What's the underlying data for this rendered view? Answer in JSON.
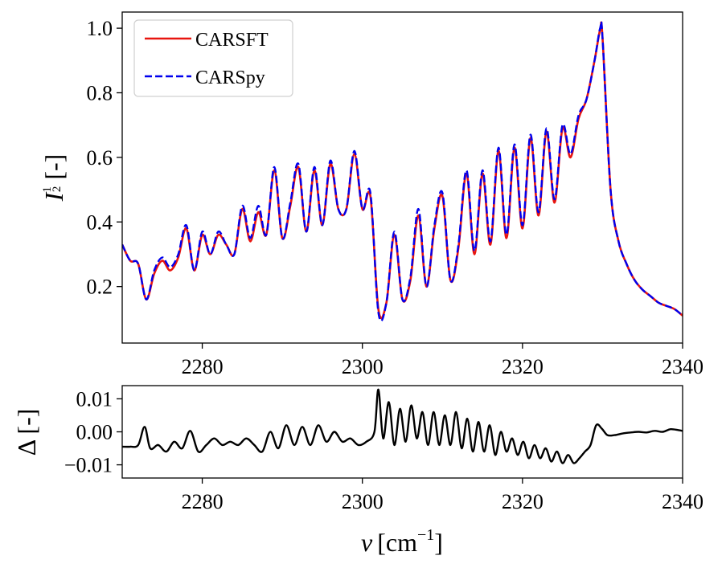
{
  "chart_data": [
    {
      "type": "line",
      "panel": "top",
      "xlabel": "",
      "ylabel_main": "I",
      "ylabel_exp_num": "1",
      "ylabel_exp_den": "2",
      "ylabel_unit": "[-]",
      "xlim": [
        2270,
        2340
      ],
      "ylim": [
        0.025,
        1.05
      ],
      "xticks": [
        2280,
        2300,
        2320,
        2340
      ],
      "yticks": [
        0.2,
        0.4,
        0.6,
        0.8,
        1.0
      ],
      "xtick_labels": [
        "2280",
        "2300",
        "2320",
        "2340"
      ],
      "ytick_labels": [
        "0.2",
        "0.4",
        "0.6",
        "0.8",
        "1.0"
      ],
      "legend": {
        "position": "top-left",
        "entries": [
          "CARSFT",
          "CARSpy"
        ]
      },
      "series": [
        {
          "name": "CARSFT",
          "color": "#e8150f",
          "style": "solid"
        },
        {
          "name": "CARSpy",
          "color": "#0000ee",
          "style": "dashed"
        }
      ],
      "x": [
        2270,
        2271,
        2272,
        2273,
        2274,
        2275,
        2276,
        2277,
        2278,
        2279,
        2280,
        2281,
        2282,
        2283,
        2284,
        2285,
        2286,
        2287,
        2288,
        2289,
        2290,
        2291,
        2292,
        2293,
        2294,
        2295,
        2296,
        2297,
        2298,
        2299,
        2300,
        2301,
        2302,
        2303,
        2304,
        2305,
        2306,
        2307,
        2308,
        2309,
        2310,
        2311,
        2312,
        2313,
        2314,
        2315,
        2316,
        2317,
        2318,
        2319,
        2320,
        2321,
        2322,
        2323,
        2324,
        2325,
        2326,
        2327,
        2328,
        2329,
        2329.7,
        2330,
        2331,
        2332,
        2333,
        2334,
        2335,
        2336,
        2337,
        2338,
        2339,
        2340
      ],
      "y_carsft": [
        0.33,
        0.28,
        0.27,
        0.16,
        0.24,
        0.28,
        0.25,
        0.29,
        0.38,
        0.25,
        0.36,
        0.3,
        0.36,
        0.33,
        0.3,
        0.44,
        0.34,
        0.43,
        0.36,
        0.56,
        0.35,
        0.45,
        0.57,
        0.37,
        0.56,
        0.39,
        0.58,
        0.44,
        0.44,
        0.61,
        0.44,
        0.48,
        0.13,
        0.15,
        0.36,
        0.16,
        0.22,
        0.42,
        0.2,
        0.38,
        0.48,
        0.22,
        0.32,
        0.55,
        0.3,
        0.55,
        0.33,
        0.62,
        0.35,
        0.63,
        0.38,
        0.66,
        0.42,
        0.68,
        0.46,
        0.69,
        0.6,
        0.72,
        0.78,
        0.9,
        0.995,
        0.97,
        0.5,
        0.34,
        0.27,
        0.22,
        0.19,
        0.17,
        0.15,
        0.14,
        0.13,
        0.11
      ],
      "y_carspy": [
        0.33,
        0.28,
        0.27,
        0.16,
        0.25,
        0.29,
        0.26,
        0.3,
        0.39,
        0.25,
        0.37,
        0.3,
        0.37,
        0.33,
        0.3,
        0.45,
        0.35,
        0.45,
        0.36,
        0.57,
        0.35,
        0.46,
        0.58,
        0.37,
        0.57,
        0.39,
        0.59,
        0.44,
        0.44,
        0.62,
        0.44,
        0.49,
        0.12,
        0.15,
        0.37,
        0.16,
        0.23,
        0.44,
        0.2,
        0.39,
        0.49,
        0.22,
        0.33,
        0.56,
        0.31,
        0.56,
        0.34,
        0.63,
        0.36,
        0.64,
        0.39,
        0.67,
        0.43,
        0.69,
        0.47,
        0.7,
        0.61,
        0.73,
        0.78,
        0.9,
        1.0,
        0.97,
        0.5,
        0.34,
        0.27,
        0.22,
        0.19,
        0.17,
        0.15,
        0.14,
        0.13,
        0.11
      ]
    },
    {
      "type": "line",
      "panel": "bottom",
      "xlabel_main": "ν",
      "xlabel_unit_base": "cm",
      "xlabel_unit_exp": "−1",
      "ylabel": "Δ [-]",
      "xlim": [
        2270,
        2340
      ],
      "ylim": [
        -0.014,
        0.014
      ],
      "xticks": [
        2280,
        2300,
        2320,
        2340
      ],
      "yticks": [
        -0.01,
        0.0,
        0.01
      ],
      "xtick_labels": [
        "2280",
        "2300",
        "2320",
        "2340"
      ],
      "ytick_labels": [
        "−0.01",
        "0.00",
        "0.01"
      ],
      "series": [
        {
          "name": "difference",
          "color": "#000000",
          "style": "solid"
        }
      ],
      "x": [
        2270,
        2271,
        2272,
        2272.8,
        2273.5,
        2274.5,
        2275.5,
        2276.5,
        2277.5,
        2278.5,
        2279.5,
        2280.5,
        2281.5,
        2282.5,
        2283.5,
        2284.5,
        2285.5,
        2286.5,
        2287.5,
        2288.5,
        2289.5,
        2290.5,
        2291.5,
        2292.5,
        2293.5,
        2294.5,
        2295.5,
        2296.5,
        2297.5,
        2298.5,
        2299.5,
        2300.5,
        2301.5,
        2302,
        2302.6,
        2303.3,
        2304,
        2304.7,
        2305.4,
        2306.1,
        2306.8,
        2307.5,
        2308.2,
        2308.9,
        2309.6,
        2310.3,
        2311,
        2311.7,
        2312.4,
        2313.1,
        2313.8,
        2314.5,
        2315.2,
        2315.9,
        2316.6,
        2317.3,
        2318,
        2318.7,
        2319.4,
        2320.1,
        2320.8,
        2321.5,
        2322.2,
        2322.9,
        2323.6,
        2324.3,
        2325,
        2325.7,
        2326.4,
        2327.1,
        2327.8,
        2328.5,
        2329.2,
        2329.9,
        2330.6,
        2331.5,
        2332.5,
        2333.5,
        2334.5,
        2335.5,
        2336.5,
        2337.5,
        2338.5,
        2339.5,
        2340
      ],
      "y": [
        -0.0045,
        -0.0045,
        -0.004,
        0.0015,
        -0.005,
        -0.004,
        -0.006,
        -0.003,
        -0.005,
        0.0003,
        -0.006,
        -0.004,
        -0.002,
        -0.004,
        -0.003,
        -0.004,
        -0.002,
        -0.004,
        -0.006,
        0.0,
        -0.005,
        0.002,
        -0.004,
        0.0015,
        -0.004,
        0.002,
        -0.003,
        0.0,
        -0.003,
        -0.002,
        -0.004,
        -0.003,
        0.0,
        0.0128,
        -0.002,
        0.009,
        -0.004,
        0.007,
        -0.003,
        0.008,
        -0.002,
        0.006,
        -0.004,
        0.006,
        -0.004,
        0.005,
        -0.004,
        0.006,
        -0.005,
        0.004,
        -0.006,
        0.003,
        -0.006,
        0.002,
        -0.007,
        0.0,
        -0.006,
        -0.002,
        -0.007,
        -0.003,
        -0.008,
        -0.004,
        -0.008,
        -0.005,
        -0.009,
        -0.006,
        -0.0095,
        -0.007,
        -0.0095,
        -0.008,
        -0.006,
        -0.004,
        0.002,
        0.001,
        -0.001,
        -0.001,
        -0.0005,
        -0.0002,
        0.0,
        -0.0002,
        0.0003,
        0.0,
        0.0008,
        0.0005,
        0.0003
      ]
    }
  ]
}
